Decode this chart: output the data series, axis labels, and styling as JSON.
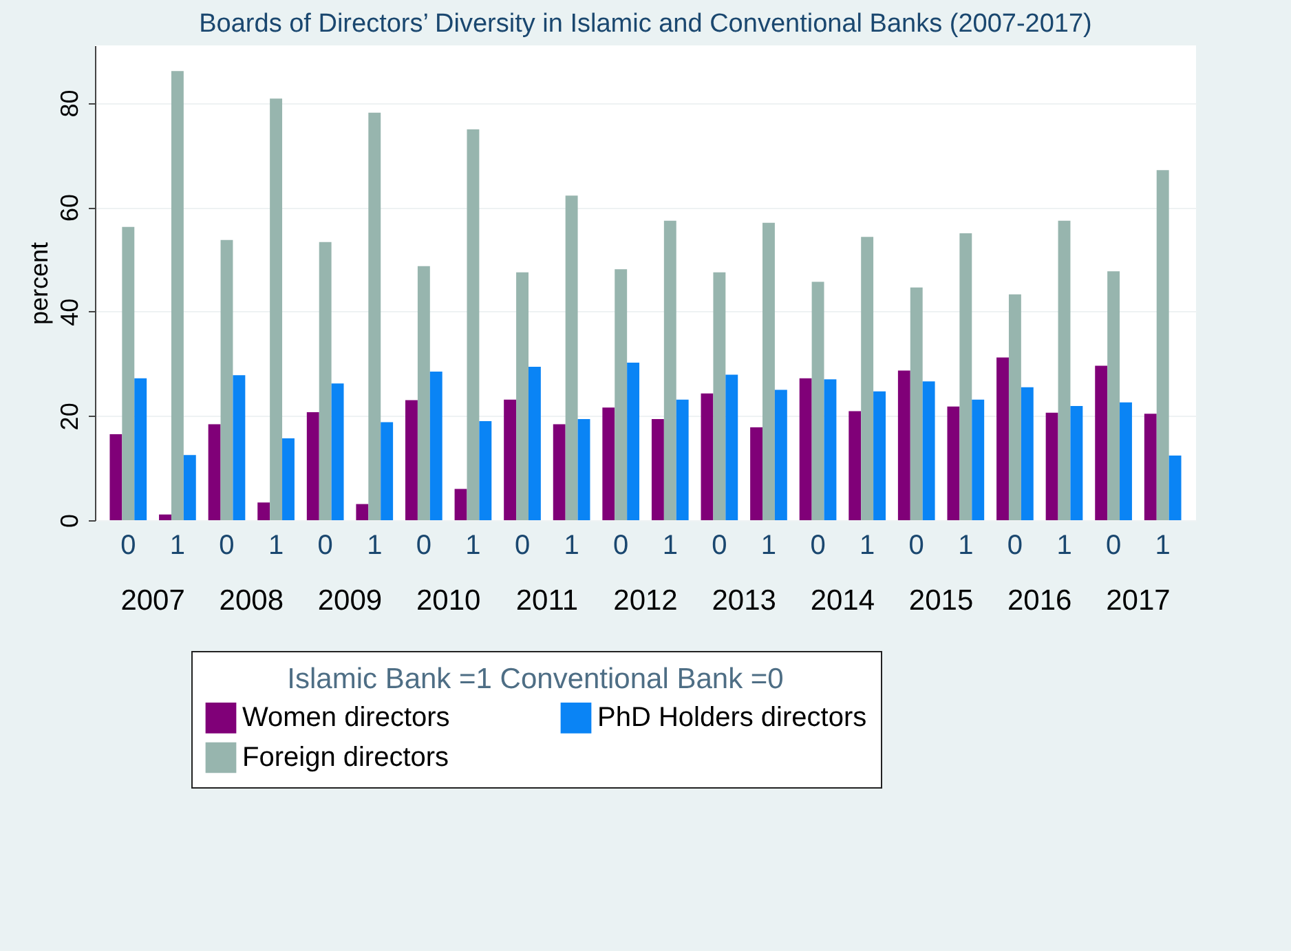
{
  "chart_data": {
    "type": "bar",
    "title": "Boards of Directors’ Diversity in Islamic and Conventional Banks (2007-2017)",
    "ylabel": "percent",
    "legend_title": "Islamic Bank =1      Conventional Bank =0",
    "categories": [
      "0",
      "1",
      "0",
      "1",
      "0",
      "1",
      "0",
      "1",
      "0",
      "1",
      "0",
      "1",
      "0",
      "1",
      "0",
      "1",
      "0",
      "1",
      "0",
      "1",
      "0",
      "1"
    ],
    "annotations": [
      "2007",
      "2008",
      "2009",
      "2010",
      "2011",
      "2012",
      "2013",
      "2014",
      "2015",
      "2016",
      "2017"
    ],
    "series": [
      {
        "name": "Women directors",
        "color": "#800078",
        "values": [
          16.5,
          1.1,
          18.4,
          3.4,
          20.7,
          3.1,
          23.0,
          6.0,
          23.1,
          18.4,
          21.6,
          19.4,
          24.3,
          17.8,
          27.2,
          20.9,
          28.7,
          21.8,
          31.2,
          20.6,
          29.6,
          20.4
        ]
      },
      {
        "name": "Foreign directors",
        "color": "#97b5ae",
        "values": [
          56.2,
          86.1,
          53.7,
          80.8,
          53.3,
          78.1,
          48.7,
          74.9,
          47.5,
          62.2,
          48.1,
          57.4,
          47.5,
          57.0,
          45.7,
          54.3,
          44.6,
          55.0,
          43.3,
          57.4,
          47.7,
          67.1
        ]
      },
      {
        "name": "PhD Holders directors",
        "color": "#0a84f5",
        "values": [
          27.2,
          12.5,
          27.8,
          15.7,
          26.2,
          18.8,
          28.5,
          19.0,
          29.4,
          19.4,
          30.2,
          23.1,
          27.9,
          25.0,
          27.0,
          24.7,
          26.6,
          23.1,
          25.5,
          21.9,
          22.6,
          12.4
        ]
      }
    ],
    "ylim": [
      0,
      91
    ],
    "yticks": [
      0,
      20,
      40,
      60,
      80
    ],
    "grid": "y",
    "legend": "bottom"
  }
}
